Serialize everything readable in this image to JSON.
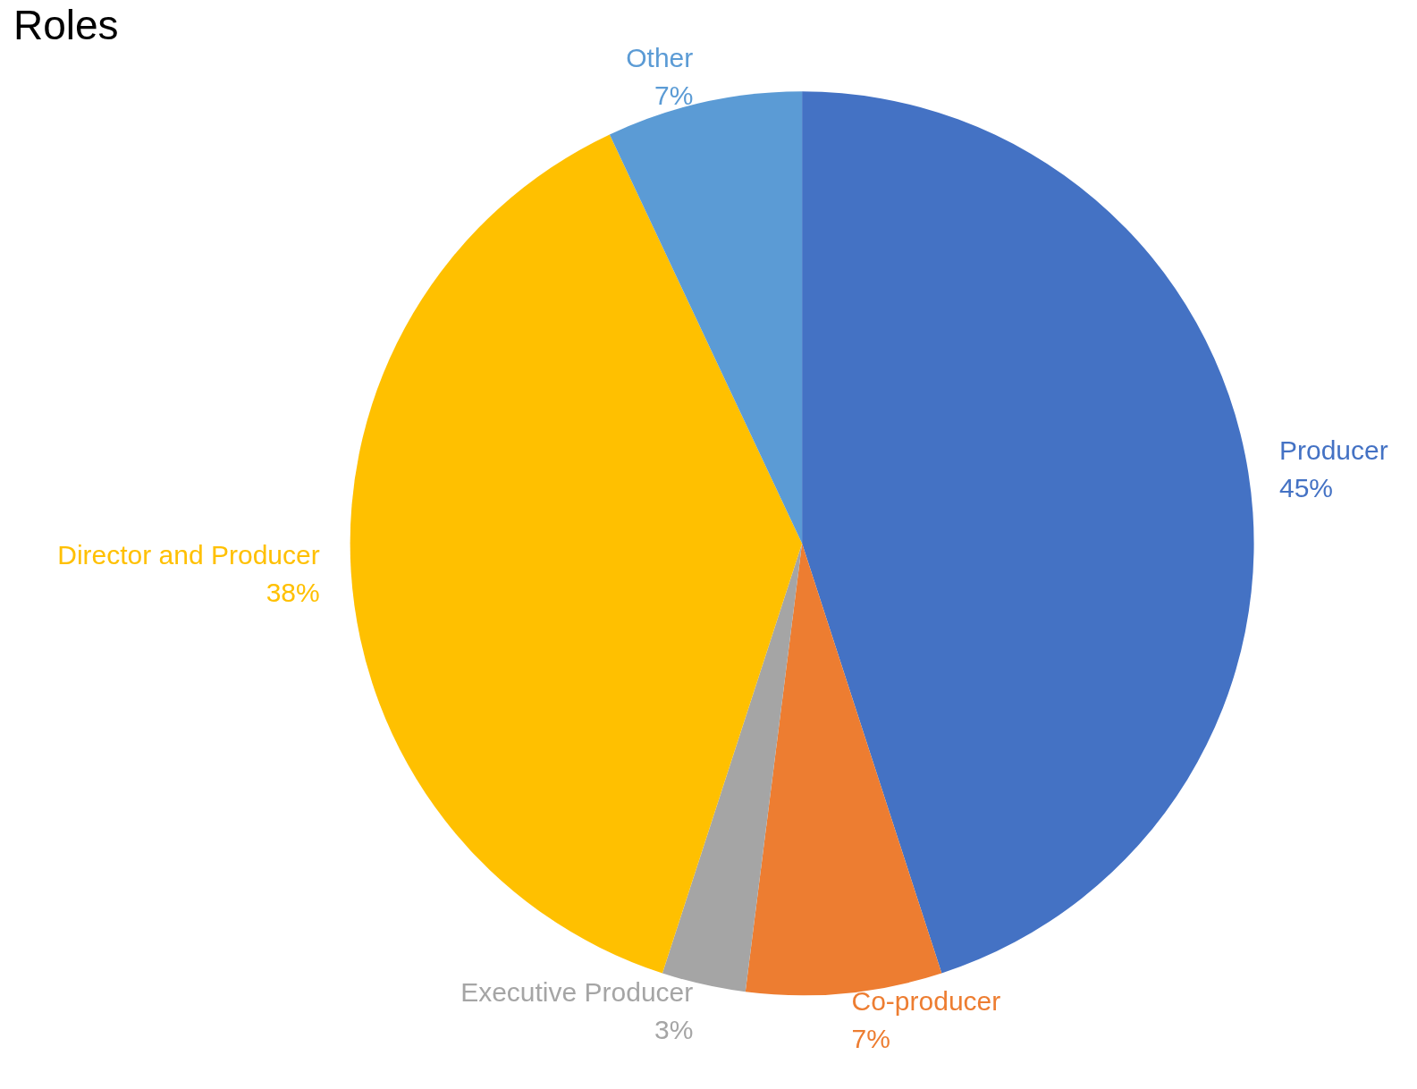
{
  "chart_data": {
    "type": "pie",
    "title": "Roles",
    "categories": [
      "Producer",
      "Co-producer",
      "Executive Producer",
      "Director and Producer",
      "Other"
    ],
    "values": [
      45,
      7,
      3,
      38,
      7
    ],
    "value_labels": [
      "45%",
      "7%",
      "3%",
      "38%",
      "7%"
    ],
    "colors": [
      "#4472c4",
      "#ed7d31",
      "#a5a5a5",
      "#ffc000",
      "#5b9bd5"
    ],
    "legend": false
  }
}
